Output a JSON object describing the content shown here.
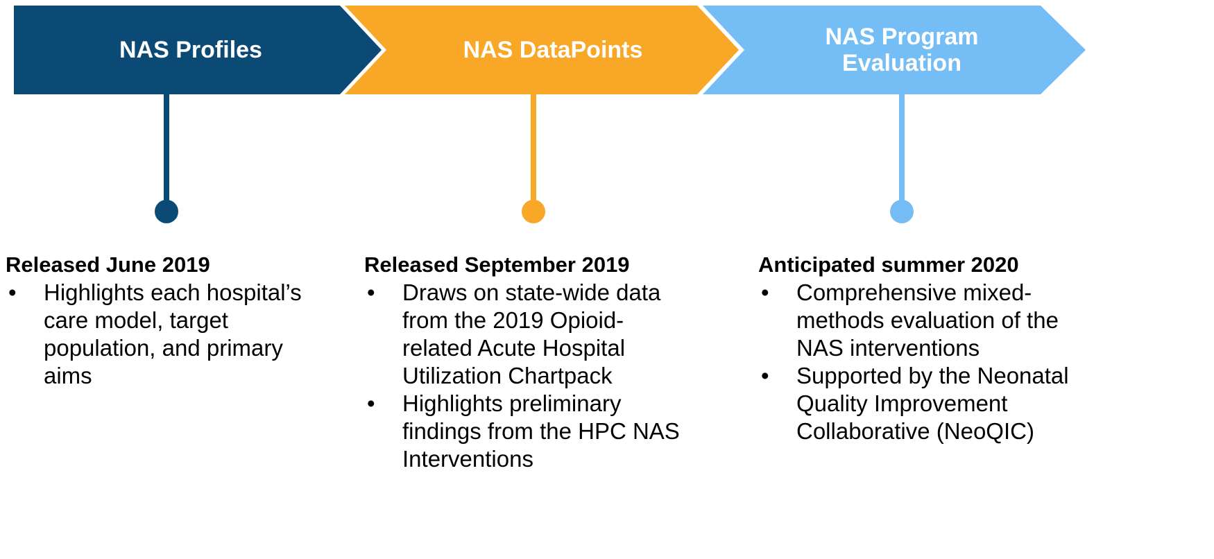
{
  "stages": [
    {
      "title": "NAS Profiles",
      "heading": "Released June 2019",
      "bullets": [
        "Highlights each hospital’s care model, target population, and primary aims"
      ]
    },
    {
      "title": "NAS DataPoints",
      "heading": "Released September 2019",
      "bullets": [
        "Draws on state-wide data from the 2019 Opioid-related Acute Hospital Utilization Chartpack",
        "Highlights preliminary findings from the HPC NAS Interventions"
      ]
    },
    {
      "title": "NAS Program Evaluation",
      "heading": "Anticipated summer 2020",
      "bullets": [
        "Comprehensive mixed-methods evaluation of the NAS interventions",
        "Supported by the Neonatal Quality Improvement Collaborative (NeoQIC)"
      ]
    }
  ]
}
